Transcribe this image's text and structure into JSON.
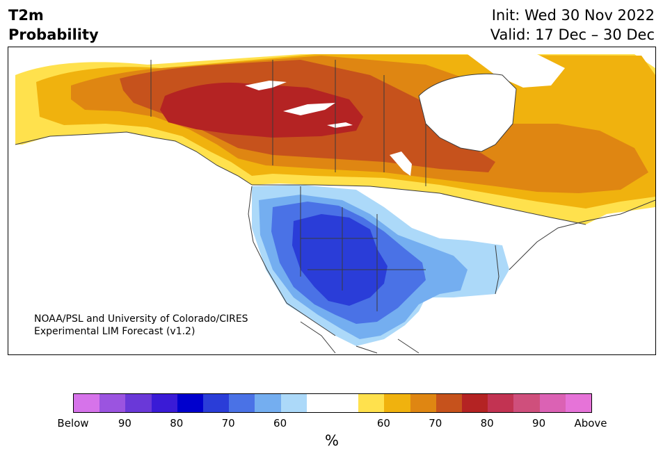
{
  "header": {
    "title_line1": "T2m",
    "title_line2": "Probability",
    "init": "Init: Wed 30 Nov 2022",
    "valid": "Valid: 17 Dec – 30 Dec"
  },
  "map": {
    "credit_line1": "NOAA/PSL and University of Colorado/CIRES",
    "credit_line2": "Experimental LIM Forecast (v1.2)",
    "region": "North America",
    "colors": {
      "above_50_60": "#ffe14d",
      "above_60_65": "#f0b20e",
      "above_65_70": "#df8612",
      "above_70_75": "#c6521c",
      "above_75_80": "#b42323",
      "below_50_60": "#acd9f9",
      "below_60_65": "#74aef0",
      "below_65_70": "#4a72e6",
      "below_70_75": "#2a3dd8",
      "land_outline": "#3a3a3a"
    }
  },
  "colorbar": {
    "unit": "%",
    "segments": [
      "#d673ea",
      "#9b54e0",
      "#6a38d8",
      "#3a1bd6",
      "#0000cd",
      "#2a3dd8",
      "#4a72e6",
      "#74aef0",
      "#acd9f9",
      "#ffffff",
      "#ffffff",
      "#ffe14d",
      "#f0b20e",
      "#df8612",
      "#c6521c",
      "#b42323",
      "#c23352",
      "#cf4f7c",
      "#db62b4",
      "#e673d8"
    ],
    "labels": [
      "Below",
      "90",
      "80",
      "70",
      "60",
      "60",
      "70",
      "80",
      "90",
      "Above"
    ]
  }
}
